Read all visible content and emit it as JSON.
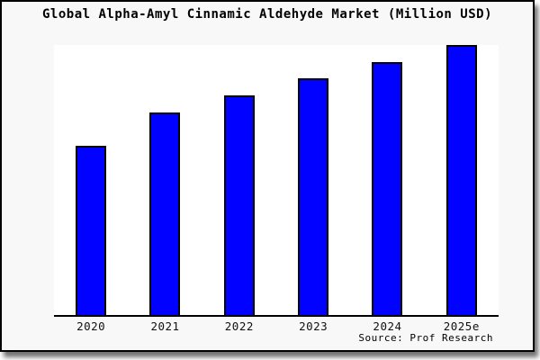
{
  "window": {
    "background_color": "#f8f8f8",
    "frame_border_color": "#000000",
    "plot_background_color": "#ffffff"
  },
  "chart": {
    "title": "Global Alpha-Amyl Cinnamic Aldehyde Market (Million USD)",
    "source": "Source: Prof Research",
    "bar_color": "#0101ff",
    "bar_border_color": "#000000",
    "axis_color": "#000000"
  },
  "chart_data": {
    "type": "bar",
    "title": "Global Alpha-Amyl Cinnamic Aldehyde Market (Million USD)",
    "categories": [
      "2020",
      "2021",
      "2022",
      "2023",
      "2024",
      "2025e"
    ],
    "values": [
      62.8,
      75.0,
      81.3,
      87.7,
      93.7,
      100.0
    ],
    "value_note": "relative bar heights (index: 2025e = 100); chart shows no numeric y-axis, gridlines or data labels",
    "xlabel": "",
    "ylabel": "",
    "ylim": [
      0,
      100
    ],
    "grid": false,
    "legend": false,
    "y_axis_ticks": [],
    "source": "Source: Prof Research"
  }
}
